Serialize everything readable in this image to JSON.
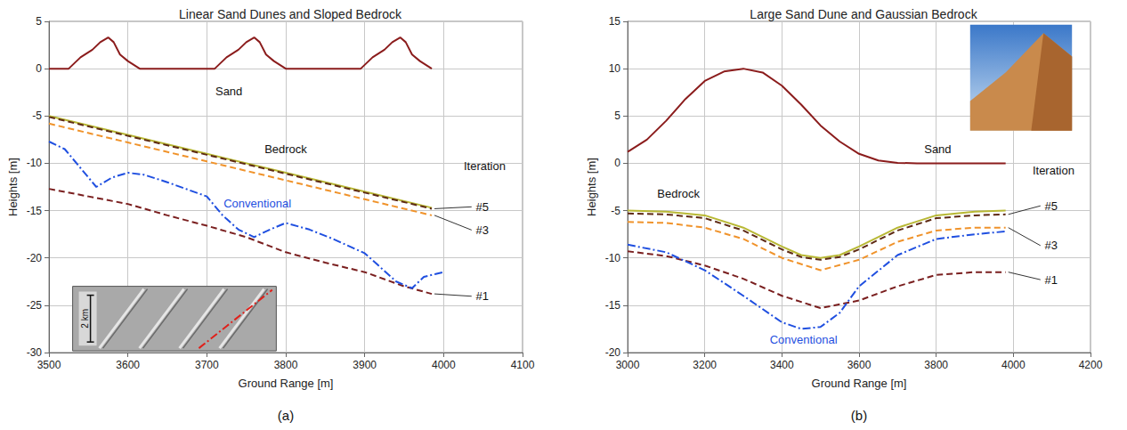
{
  "chart_data": [
    {
      "type": "line",
      "title": "Linear Sand Dunes and Sloped Bedrock",
      "x_label": "Ground Range [m]",
      "y_label": "Heights [m]",
      "xlim": [
        3500,
        4100
      ],
      "xticks": [
        3500,
        3600,
        3700,
        3800,
        3900,
        4000,
        4100
      ],
      "ylim": [
        -30,
        5
      ],
      "yticks": [
        -30,
        -25,
        -20,
        -15,
        -10,
        -5,
        0,
        5
      ],
      "grid": true,
      "annotations": [
        "Iteration"
      ],
      "inset_label": "2 km",
      "panel_label": "(a)",
      "series": [
        {
          "name": "Sand",
          "color": "#8b1c1c",
          "line_style": "solid",
          "marker": "none",
          "x": [
            3500,
            3525,
            3540,
            3555,
            3565,
            3575,
            3582,
            3590,
            3600,
            3615,
            3710,
            3725,
            3740,
            3750,
            3760,
            3767,
            3775,
            3785,
            3800,
            3895,
            3910,
            3925,
            3935,
            3945,
            3952,
            3960,
            3970,
            3985
          ],
          "values": [
            0,
            0,
            1.2,
            2,
            2.8,
            3.3,
            2.8,
            1.5,
            0.8,
            0,
            0,
            1.2,
            2,
            2.8,
            3.3,
            2.8,
            1.5,
            0.8,
            0,
            0,
            1.2,
            2,
            2.8,
            3.3,
            2.8,
            1.5,
            0.8,
            0
          ]
        },
        {
          "name": "Bedrock",
          "color": "#b8b834",
          "line_style": "solid",
          "marker": "none",
          "x": [
            3500,
            3600,
            3700,
            3800,
            3900,
            3985
          ],
          "values": [
            -5,
            -7,
            -9,
            -11,
            -13,
            -14.7
          ]
        },
        {
          "name": "#5",
          "color": "#5e2a14",
          "line_style": "dashed",
          "marker": "none",
          "x": [
            3500,
            3600,
            3700,
            3800,
            3900,
            3985
          ],
          "values": [
            -5.1,
            -7.1,
            -9.1,
            -11.1,
            -13.1,
            -14.8
          ]
        },
        {
          "name": "#3",
          "color": "#f0932b",
          "line_style": "dashed",
          "marker": "none",
          "x": [
            3500,
            3600,
            3700,
            3800,
            3900,
            3985
          ],
          "values": [
            -5.8,
            -7.8,
            -9.8,
            -11.8,
            -13.8,
            -15.5
          ]
        },
        {
          "name": "#1",
          "color": "#7a1f1f",
          "line_style": "dashed",
          "marker": "none",
          "x": [
            3500,
            3550,
            3600,
            3650,
            3700,
            3750,
            3800,
            3850,
            3900,
            3950,
            3985
          ],
          "values": [
            -12.7,
            -13.5,
            -14.3,
            -15.5,
            -16.6,
            -17.8,
            -19.4,
            -20.5,
            -21.5,
            -23,
            -23.8
          ]
        },
        {
          "name": "Conventional",
          "color": "#1f4fe0",
          "line_style": "dashdot",
          "marker": "none",
          "x": [
            3500,
            3520,
            3540,
            3560,
            3580,
            3600,
            3620,
            3650,
            3700,
            3720,
            3740,
            3760,
            3780,
            3800,
            3830,
            3860,
            3900,
            3920,
            3940,
            3960,
            3975,
            3990,
            4000
          ],
          "values": [
            -7.7,
            -8.5,
            -10.5,
            -12.5,
            -11.5,
            -11,
            -11.2,
            -12,
            -13.5,
            -15.5,
            -17,
            -17.8,
            -17,
            -16.3,
            -17,
            -18,
            -19.5,
            -21,
            -22.5,
            -23.2,
            -22,
            -21.7,
            -21.5
          ]
        }
      ]
    },
    {
      "type": "line",
      "title": "Large Sand Dune and Gaussian Bedrock",
      "x_label": "Ground Range [m]",
      "y_label": "Heights [m]",
      "xlim": [
        3000,
        4200
      ],
      "xticks": [
        3000,
        3200,
        3400,
        3600,
        3800,
        4000,
        4200
      ],
      "ylim": [
        -20,
        15
      ],
      "yticks": [
        -20,
        -15,
        -10,
        -5,
        0,
        5,
        10,
        15
      ],
      "grid": true,
      "annotations": [
        "Iteration"
      ],
      "panel_label": "(b)",
      "series": [
        {
          "name": "Sand",
          "color": "#8b1c1c",
          "line_style": "solid",
          "marker": "none",
          "x": [
            3000,
            3050,
            3100,
            3150,
            3200,
            3250,
            3300,
            3350,
            3400,
            3450,
            3500,
            3550,
            3600,
            3650,
            3700,
            3750,
            3980
          ],
          "values": [
            1.2,
            2.5,
            4.5,
            6.8,
            8.7,
            9.7,
            10,
            9.6,
            8.2,
            6.2,
            4,
            2.3,
            1,
            0.3,
            0.05,
            0,
            0
          ]
        },
        {
          "name": "Bedrock",
          "color": "#b8b834",
          "line_style": "solid",
          "marker": "none",
          "x": [
            3000,
            3100,
            3200,
            3300,
            3400,
            3450,
            3500,
            3550,
            3600,
            3700,
            3800,
            3900,
            3980
          ],
          "values": [
            -5,
            -5.1,
            -5.5,
            -6.8,
            -8.8,
            -9.7,
            -10,
            -9.7,
            -8.8,
            -6.8,
            -5.5,
            -5.1,
            -5
          ]
        },
        {
          "name": "#5",
          "color": "#5e2a14",
          "line_style": "dashed",
          "marker": "none",
          "x": [
            3000,
            3100,
            3200,
            3300,
            3400,
            3450,
            3500,
            3550,
            3600,
            3700,
            3800,
            3900,
            3980
          ],
          "values": [
            -5.3,
            -5.4,
            -5.8,
            -7.1,
            -9.1,
            -9.9,
            -10.2,
            -9.9,
            -9.1,
            -7.1,
            -5.8,
            -5.5,
            -5.4
          ]
        },
        {
          "name": "#3",
          "color": "#f0932b",
          "line_style": "dashed",
          "marker": "none",
          "x": [
            3000,
            3100,
            3200,
            3300,
            3400,
            3500,
            3600,
            3700,
            3800,
            3900,
            3980
          ],
          "values": [
            -6.2,
            -6.3,
            -6.8,
            -8,
            -10,
            -11.3,
            -10.2,
            -8.3,
            -7.1,
            -6.8,
            -6.8
          ]
        },
        {
          "name": "#1",
          "color": "#7a1f1f",
          "line_style": "dashed",
          "marker": "none",
          "x": [
            3000,
            3100,
            3200,
            3300,
            3400,
            3500,
            3600,
            3700,
            3800,
            3900,
            3980
          ],
          "values": [
            -9.3,
            -9.8,
            -10.8,
            -12.2,
            -14,
            -15.3,
            -14.5,
            -13,
            -11.8,
            -11.5,
            -11.5
          ]
        },
        {
          "name": "Conventional",
          "color": "#1f4fe0",
          "line_style": "dashdot",
          "marker": "none",
          "x": [
            3000,
            3100,
            3200,
            3300,
            3400,
            3450,
            3500,
            3550,
            3600,
            3700,
            3800,
            3900,
            3980
          ],
          "values": [
            -8.6,
            -9.4,
            -11.3,
            -14,
            -16.8,
            -17.5,
            -17.3,
            -15.8,
            -13,
            -9.7,
            -8,
            -7.5,
            -7.2
          ]
        }
      ]
    }
  ]
}
